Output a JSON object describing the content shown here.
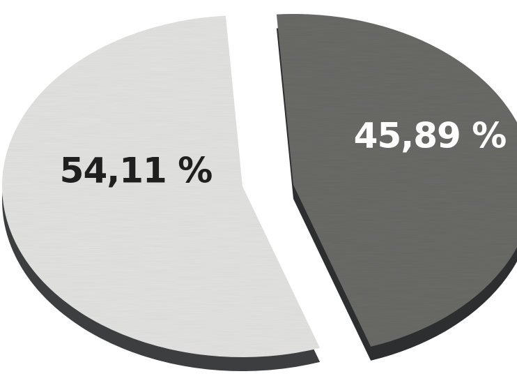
{
  "chart_data": {
    "type": "pie",
    "style": "3d-exploded",
    "slices": [
      {
        "value": 54.11,
        "label": "54,11 %",
        "color": "#e3e3e1",
        "side_color": "#3c3e3f",
        "label_color": "#1f1f1f"
      },
      {
        "value": 45.89,
        "label": "45,89 %",
        "color": "#6a6b67",
        "side_color": "#2c2e30",
        "label_color": "#ffffff"
      }
    ],
    "title": "",
    "legend": "none"
  }
}
